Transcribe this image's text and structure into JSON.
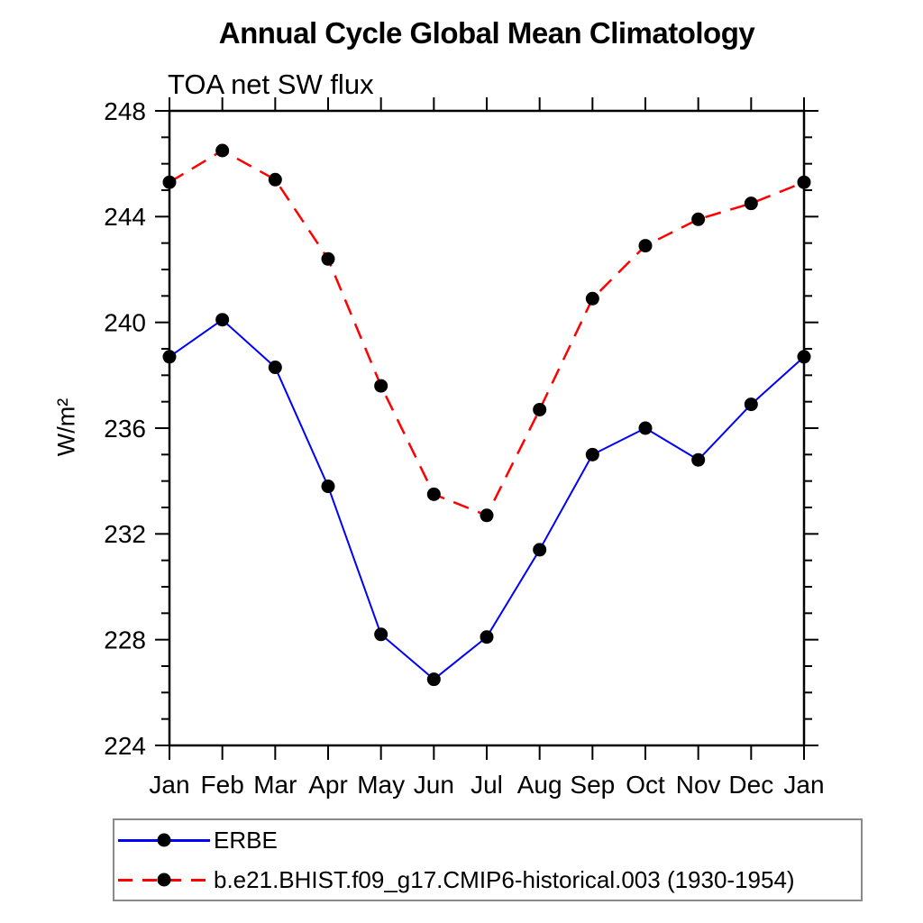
{
  "header": {
    "title": "Annual Cycle Global Mean Climatology",
    "subtitle": "TOA net SW flux"
  },
  "chart_data": {
    "type": "line",
    "title": "Annual Cycle Global Mean Climatology",
    "subtitle": "TOA net SW flux",
    "xlabel": "",
    "ylabel": "W/m²",
    "categories": [
      "Jan",
      "Feb",
      "Mar",
      "Apr",
      "May",
      "Jun",
      "Jul",
      "Aug",
      "Sep",
      "Oct",
      "Nov",
      "Dec",
      "Jan"
    ],
    "ylim": [
      224,
      248
    ],
    "ytick_major_step": 4,
    "ytick_minor_step": 1,
    "ytick_labels": [
      "224",
      "228",
      "232",
      "236",
      "240",
      "244",
      "248"
    ],
    "grid": "off",
    "legend_position": "bottom-left",
    "marker_color": "#000000",
    "series": [
      {
        "name": "ERBE",
        "color": "#0000ff",
        "line_style": "solid",
        "marker": "circle",
        "values": [
          238.7,
          240.1,
          238.3,
          233.8,
          228.2,
          226.5,
          228.1,
          231.4,
          235.0,
          236.0,
          234.8,
          236.9,
          238.7
        ]
      },
      {
        "name": "b.e21.BHIST.f09_g17.CMIP6-historical.003 (1930-1954)",
        "color": "#ff0000",
        "line_style": "dashed",
        "marker": "circle",
        "values": [
          245.3,
          246.5,
          245.4,
          242.4,
          237.6,
          233.5,
          232.7,
          236.7,
          240.9,
          242.9,
          243.9,
          244.5,
          245.3
        ]
      }
    ]
  }
}
